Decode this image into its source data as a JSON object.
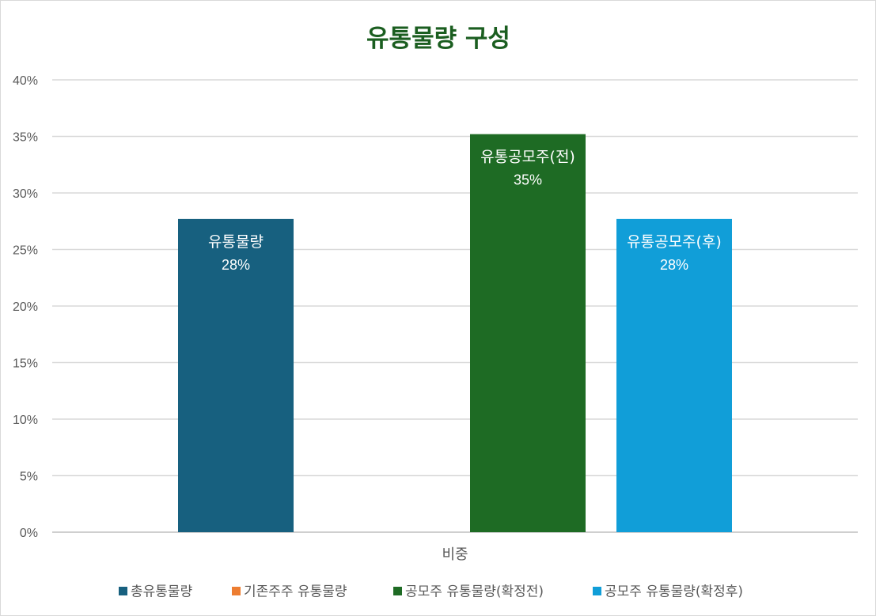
{
  "chart_data": {
    "type": "bar",
    "title": "유통물량 구성",
    "xlabel": "",
    "ylabel": "",
    "categories": [
      "비중"
    ],
    "ylim": [
      0,
      0.4
    ],
    "y_ticks": [
      "0%",
      "5%",
      "10%",
      "15%",
      "20%",
      "25%",
      "30%",
      "35%",
      "40%"
    ],
    "grid": true,
    "legend_position": "bottom",
    "series": [
      {
        "name": "총유통물량",
        "values": [
          0.277
        ],
        "color": "#17607f",
        "label": "유통물량",
        "value_label": "28%"
      },
      {
        "name": "기존주주 유통물량",
        "values": [
          0
        ],
        "color": "#ed7d31",
        "label": "",
        "value_label": ""
      },
      {
        "name": "공모주 유통물량(확정전)",
        "values": [
          0.352
        ],
        "color": "#1e6b24",
        "label": "유통공모주(전)",
        "value_label": "35%"
      },
      {
        "name": "공모주 유통물량(확정후)",
        "values": [
          0.277
        ],
        "color": "#119ed8",
        "label": "유통공모주(후)",
        "value_label": "28%"
      }
    ]
  }
}
